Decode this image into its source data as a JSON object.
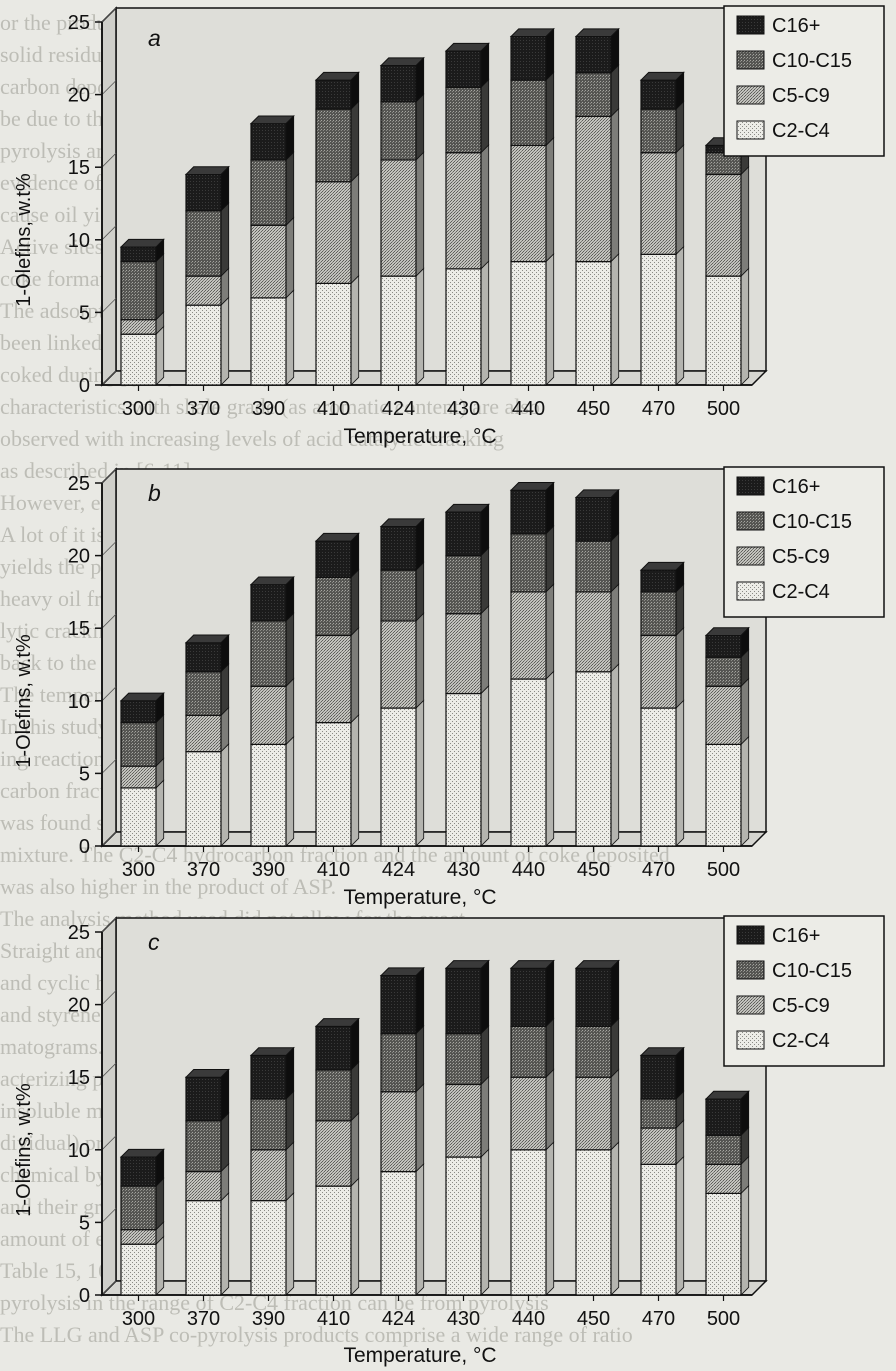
{
  "legend_labels": [
    "C16+",
    "C10-C15",
    "C5-C9",
    "C2-C4"
  ],
  "colors": {
    "background": "#e9e9e4",
    "C2-C4": "#e8e8e3",
    "C5-C9": "#b8b8b3",
    "C10-C15": "#5a5a57",
    "C16+": "#1e1e1e",
    "wall": "#deded9"
  },
  "chart_data": [
    {
      "type": "bar",
      "stacked": true,
      "panel_label": "a",
      "title": "",
      "xlabel": "Temperature, °C",
      "ylabel": "1-Olefins, w.t%",
      "ylim": [
        0,
        25
      ],
      "yticks": [
        0,
        5,
        10,
        15,
        20,
        25
      ],
      "categories": [
        "300",
        "370",
        "390",
        "410",
        "424",
        "430",
        "440",
        "450",
        "470",
        "500"
      ],
      "series": [
        {
          "name": "C2-C4",
          "values": [
            3.5,
            5.5,
            6.0,
            7.0,
            7.5,
            8.0,
            8.5,
            8.5,
            9.0,
            7.5
          ]
        },
        {
          "name": "C5-C9",
          "values": [
            1.0,
            2.0,
            5.0,
            7.0,
            8.0,
            8.0,
            8.0,
            10.0,
            7.0,
            7.0
          ]
        },
        {
          "name": "C10-C15",
          "values": [
            4.0,
            4.5,
            4.5,
            5.0,
            4.0,
            4.5,
            4.5,
            3.0,
            3.0,
            1.5
          ]
        },
        {
          "name": "C16+",
          "values": [
            1.0,
            2.5,
            2.5,
            2.0,
            2.5,
            2.5,
            3.0,
            2.5,
            2.0,
            0.5
          ]
        }
      ],
      "legend": "top-right",
      "grid": false
    },
    {
      "type": "bar",
      "stacked": true,
      "panel_label": "b",
      "title": "",
      "xlabel": "Temperature, °C",
      "ylabel": "1-Olefins, w.t%",
      "ylim": [
        0,
        25
      ],
      "yticks": [
        0,
        5,
        10,
        15,
        20,
        25
      ],
      "categories": [
        "300",
        "370",
        "390",
        "410",
        "424",
        "430",
        "440",
        "450",
        "470",
        "500"
      ],
      "series": [
        {
          "name": "C2-C4",
          "values": [
            4.0,
            6.5,
            7.0,
            8.5,
            9.5,
            10.5,
            11.5,
            12.0,
            9.5,
            7.0
          ]
        },
        {
          "name": "C5-C9",
          "values": [
            1.5,
            2.5,
            4.0,
            6.0,
            6.0,
            5.5,
            6.0,
            5.5,
            5.0,
            4.0
          ]
        },
        {
          "name": "C10-C15",
          "values": [
            3.0,
            3.0,
            4.5,
            4.0,
            3.5,
            4.0,
            4.0,
            3.5,
            3.0,
            2.0
          ]
        },
        {
          "name": "C16+",
          "values": [
            1.5,
            2.0,
            2.5,
            2.5,
            3.0,
            3.0,
            3.0,
            3.0,
            1.5,
            1.5
          ]
        }
      ],
      "legend": "top-right",
      "grid": false
    },
    {
      "type": "bar",
      "stacked": true,
      "panel_label": "c",
      "title": "",
      "xlabel": "Temperature, °C",
      "ylabel": "1-Olefins, w.t%",
      "ylim": [
        0,
        25
      ],
      "yticks": [
        0,
        5,
        10,
        15,
        20,
        25
      ],
      "categories": [
        "300",
        "370",
        "390",
        "410",
        "424",
        "430",
        "440",
        "450",
        "470",
        "500"
      ],
      "series": [
        {
          "name": "C2-C4",
          "values": [
            3.5,
            6.5,
            6.5,
            7.5,
            8.5,
            9.5,
            10.0,
            10.0,
            9.0,
            7.0
          ]
        },
        {
          "name": "C5-C9",
          "values": [
            1.0,
            2.0,
            3.5,
            4.5,
            5.5,
            5.0,
            5.0,
            5.0,
            2.5,
            2.0
          ]
        },
        {
          "name": "C10-C15",
          "values": [
            3.0,
            3.5,
            3.5,
            3.5,
            4.0,
            3.5,
            3.5,
            3.5,
            2.0,
            2.0
          ]
        },
        {
          "name": "C16+",
          "values": [
            2.0,
            3.0,
            3.0,
            3.0,
            4.0,
            4.5,
            4.0,
            4.0,
            3.0,
            2.5
          ]
        }
      ],
      "legend": "top-right",
      "grid": false
    }
  ]
}
